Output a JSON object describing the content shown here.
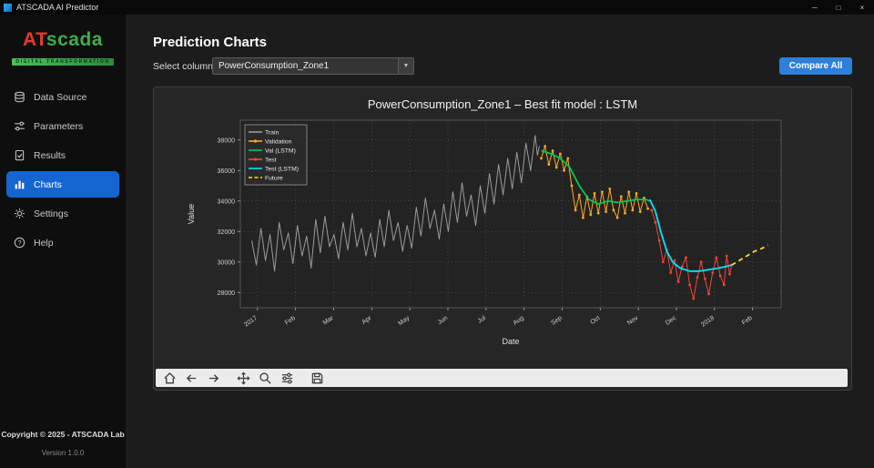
{
  "window": {
    "title": "ATSCADA AI Predictor",
    "controls": {
      "minimize": "─",
      "maximize": "□",
      "close": "×"
    }
  },
  "sidebar": {
    "logo": {
      "part1": "AT",
      "part2": "scada",
      "tagline": "DIGITAL TRANSFORMATION"
    },
    "items": [
      {
        "label": "Data Source"
      },
      {
        "label": "Parameters"
      },
      {
        "label": "Results"
      },
      {
        "label": "Charts",
        "active": true
      },
      {
        "label": "Settings"
      },
      {
        "label": "Help"
      }
    ],
    "footer": {
      "copyright": "Copyright © 2025 - ATSCADA Lab",
      "version": "Version 1.0.0"
    }
  },
  "main": {
    "title": "Prediction Charts",
    "select_label": "Select column:",
    "select_value": "PowerConsumption_Zone1",
    "select_arrow": "▼",
    "compare_button": "Compare All"
  },
  "chart_data": {
    "type": "line",
    "title": "PowerConsumption_Zone1 – Best fit model : LSTM",
    "xlabel": "Date",
    "ylabel": "Value",
    "xlim": [
      -0.45,
      13.75
    ],
    "ylim": [
      27000,
      39300
    ],
    "grid": true,
    "legend_position": "upper left",
    "y_ticks": [
      28000,
      30000,
      32000,
      34000,
      36000,
      38000
    ],
    "x_ticks": {
      "positions": [
        0,
        1,
        2,
        3,
        4,
        5,
        6,
        7,
        8,
        9,
        10,
        11,
        12,
        13
      ],
      "labels": [
        "2017",
        "Feb",
        "Mar",
        "Apr",
        "May",
        "Jun",
        "Jul",
        "Aug",
        "Sep",
        "Oct",
        "Nov",
        "Dec",
        "2018",
        "Feb"
      ]
    },
    "series": [
      {
        "name": "Train",
        "color": "#9b9b9b",
        "style": "line",
        "width": 1,
        "points": [
          [
            -0.15,
            31400
          ],
          [
            -0.03,
            29800
          ],
          [
            0.09,
            32200
          ],
          [
            0.21,
            30100
          ],
          [
            0.33,
            31800
          ],
          [
            0.45,
            29400
          ],
          [
            0.57,
            32600
          ],
          [
            0.69,
            30800
          ],
          [
            0.81,
            31900
          ],
          [
            0.93,
            29900
          ],
          [
            1.05,
            32400
          ],
          [
            1.17,
            30400
          ],
          [
            1.29,
            31700
          ],
          [
            1.41,
            29600
          ],
          [
            1.53,
            32800
          ],
          [
            1.65,
            30600
          ],
          [
            1.77,
            33000
          ],
          [
            1.89,
            31000
          ],
          [
            2.01,
            31800
          ],
          [
            2.13,
            30200
          ],
          [
            2.25,
            32600
          ],
          [
            2.37,
            30800
          ],
          [
            2.49,
            33200
          ],
          [
            2.61,
            31000
          ],
          [
            2.73,
            32200
          ],
          [
            2.85,
            30400
          ],
          [
            2.97,
            31900
          ],
          [
            3.09,
            30300
          ],
          [
            3.21,
            32800
          ],
          [
            3.33,
            31000
          ],
          [
            3.45,
            33400
          ],
          [
            3.57,
            31400
          ],
          [
            3.69,
            32600
          ],
          [
            3.81,
            30700
          ],
          [
            3.93,
            32400
          ],
          [
            4.05,
            30900
          ],
          [
            4.17,
            33600
          ],
          [
            4.29,
            31700
          ],
          [
            4.41,
            34200
          ],
          [
            4.53,
            32200
          ],
          [
            4.65,
            33400
          ],
          [
            4.77,
            31500
          ],
          [
            4.89,
            33800
          ],
          [
            5.01,
            32000
          ],
          [
            5.13,
            34600
          ],
          [
            5.25,
            32600
          ],
          [
            5.37,
            35200
          ],
          [
            5.49,
            33000
          ],
          [
            5.61,
            34400
          ],
          [
            5.73,
            32400
          ],
          [
            5.85,
            35000
          ],
          [
            5.97,
            33200
          ],
          [
            6.09,
            35800
          ],
          [
            6.21,
            33800
          ],
          [
            6.33,
            36400
          ],
          [
            6.45,
            34400
          ],
          [
            6.57,
            36800
          ],
          [
            6.69,
            34800
          ],
          [
            6.81,
            37200
          ],
          [
            6.93,
            35200
          ],
          [
            7.05,
            37800
          ],
          [
            7.17,
            36000
          ],
          [
            7.29,
            38300
          ],
          [
            7.35,
            37000
          ],
          [
            7.4,
            37600
          ]
        ]
      },
      {
        "name": "Validation",
        "color": "#ffa726",
        "style": "line+marker",
        "width": 1,
        "points": [
          [
            7.45,
            36800
          ],
          [
            7.55,
            37600
          ],
          [
            7.65,
            36400
          ],
          [
            7.75,
            37300
          ],
          [
            7.85,
            36200
          ],
          [
            7.95,
            37100
          ],
          [
            8.05,
            36000
          ],
          [
            8.15,
            36800
          ],
          [
            8.25,
            35000
          ],
          [
            8.35,
            33400
          ],
          [
            8.45,
            34400
          ],
          [
            8.55,
            32900
          ],
          [
            8.65,
            34300
          ],
          [
            8.75,
            33100
          ],
          [
            8.85,
            34500
          ],
          [
            8.95,
            33200
          ],
          [
            9.05,
            34600
          ],
          [
            9.15,
            33300
          ],
          [
            9.25,
            34800
          ],
          [
            9.35,
            33400
          ],
          [
            9.45,
            32900
          ],
          [
            9.55,
            34300
          ],
          [
            9.65,
            33200
          ],
          [
            9.75,
            34600
          ],
          [
            9.85,
            33400
          ],
          [
            9.95,
            34500
          ],
          [
            10.05,
            33300
          ],
          [
            10.15,
            34200
          ],
          [
            10.25,
            33500
          ]
        ]
      },
      {
        "name": "Val (LSTM)",
        "color": "#00c853",
        "style": "line",
        "width": 1.8,
        "points": [
          [
            7.45,
            37300
          ],
          [
            7.7,
            37100
          ],
          [
            7.95,
            36800
          ],
          [
            8.2,
            36200
          ],
          [
            8.45,
            35000
          ],
          [
            8.7,
            34100
          ],
          [
            8.95,
            33800
          ],
          [
            9.2,
            34000
          ],
          [
            9.45,
            33900
          ],
          [
            9.7,
            34000
          ],
          [
            9.95,
            34100
          ],
          [
            10.2,
            34100
          ],
          [
            10.3,
            34000
          ]
        ]
      },
      {
        "name": "Test",
        "color": "#f44336",
        "style": "line+marker",
        "width": 1,
        "points": [
          [
            10.35,
            33400
          ],
          [
            10.45,
            32600
          ],
          [
            10.55,
            31400
          ],
          [
            10.65,
            30000
          ],
          [
            10.75,
            30800
          ],
          [
            10.85,
            29300
          ],
          [
            10.95,
            30100
          ],
          [
            11.05,
            28700
          ],
          [
            11.15,
            29700
          ],
          [
            11.25,
            30300
          ],
          [
            11.35,
            28500
          ],
          [
            11.45,
            27600
          ],
          [
            11.55,
            29000
          ],
          [
            11.65,
            30000
          ],
          [
            11.75,
            28900
          ],
          [
            11.85,
            27900
          ],
          [
            11.95,
            29300
          ],
          [
            12.05,
            30300
          ],
          [
            12.15,
            29100
          ],
          [
            12.25,
            28500
          ],
          [
            12.32,
            30400
          ],
          [
            12.4,
            29200
          ],
          [
            12.45,
            29800
          ]
        ]
      },
      {
        "name": "Test (LSTM)",
        "color": "#00e5ff",
        "style": "line",
        "width": 1.8,
        "points": [
          [
            10.3,
            34100
          ],
          [
            10.45,
            33300
          ],
          [
            10.6,
            31900
          ],
          [
            10.75,
            30700
          ],
          [
            10.9,
            30000
          ],
          [
            11.1,
            29600
          ],
          [
            11.35,
            29400
          ],
          [
            11.6,
            29400
          ],
          [
            11.85,
            29500
          ],
          [
            12.1,
            29600
          ],
          [
            12.3,
            29700
          ],
          [
            12.45,
            29800
          ]
        ]
      },
      {
        "name": "Future",
        "color": "#ffd633",
        "style": "dashed",
        "width": 1.8,
        "points": [
          [
            12.45,
            29800
          ],
          [
            12.65,
            30100
          ],
          [
            12.85,
            30400
          ],
          [
            13.05,
            30700
          ],
          [
            13.25,
            30900
          ],
          [
            13.4,
            31100
          ]
        ]
      }
    ]
  },
  "toolbar": {
    "icons": [
      "home",
      "back",
      "forward",
      "pan",
      "zoom",
      "configure",
      "save"
    ]
  }
}
